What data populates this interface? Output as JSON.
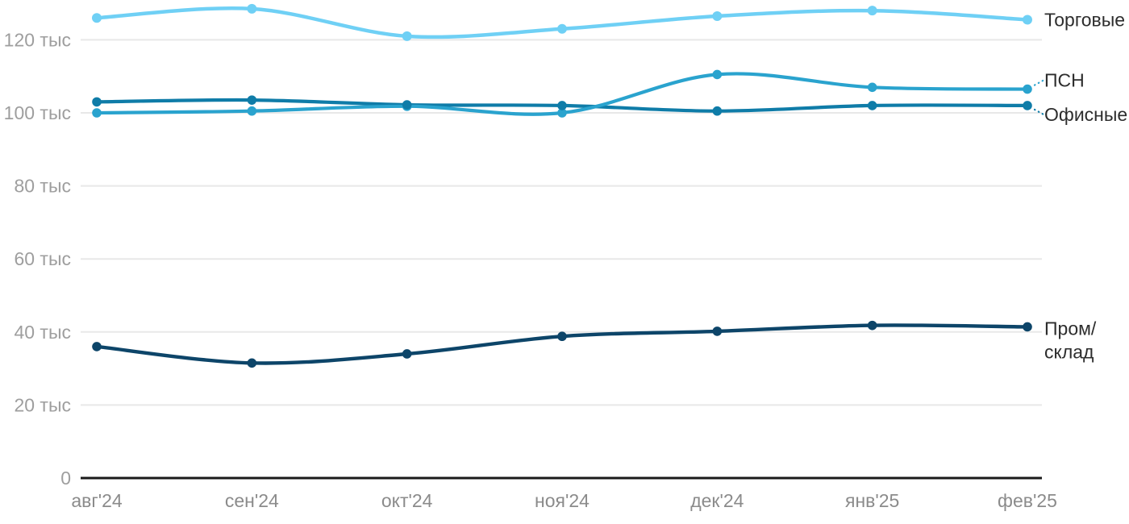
{
  "chart_data": {
    "type": "line",
    "x": [
      "авг'24",
      "сен'24",
      "окт'24",
      "ноя'24",
      "дек'24",
      "янв'25",
      "фев'25"
    ],
    "y_ticks": [
      0,
      20,
      40,
      60,
      80,
      100,
      120
    ],
    "y_tick_labels": [
      "0",
      "20 тыс",
      "40 тыс",
      "60 тыс",
      "80 тыс",
      "100 тыс",
      "120 тыс"
    ],
    "y_unit": "тыс",
    "ylim": [
      0,
      130
    ],
    "grid": true,
    "legend_position": "right-edge-labels",
    "series": [
      {
        "name": "Торговые",
        "color": "#6FD0F5",
        "values": [
          126,
          128.5,
          121,
          123,
          126.5,
          128,
          125.5
        ]
      },
      {
        "name": "ПСН",
        "color": "#2AA3CE",
        "values": [
          100,
          100.5,
          101.8,
          100,
          110.5,
          107,
          106.5
        ]
      },
      {
        "name": "Офисные",
        "color": "#0F7CA8",
        "values": [
          103,
          103.5,
          102.2,
          102,
          100.5,
          102,
          102
        ]
      },
      {
        "name": "Пром/склад",
        "color": "#0D4569",
        "values": [
          36,
          31.5,
          34,
          38.8,
          40.2,
          41.8,
          41.4
        ]
      }
    ],
    "colors": {
      "grid_line": "#E8E8E8",
      "axis_line": "#1A1A1A",
      "y_tick_text": "#9E9E9E",
      "x_tick_text": "#8B8B8B",
      "series_label_text": "#2D2D2D"
    }
  }
}
